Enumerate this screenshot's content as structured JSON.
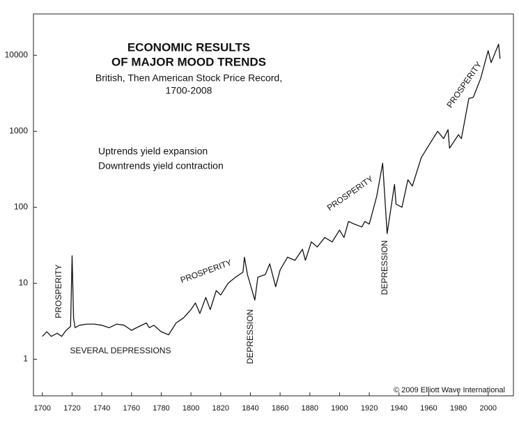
{
  "chart_data": {
    "type": "line",
    "title": [
      "ECONOMIC RESULTS",
      "OF MAJOR MOOD TRENDS"
    ],
    "subtitle": [
      "British, Then American Stock Price Record,",
      "1700-2008"
    ],
    "notes": [
      "Uptrends yield expansion",
      "Downtrends yield contraction"
    ],
    "annotations": [
      "PROSPERITY",
      "SEVERAL DEPRESSIONS",
      "PROSPERITY",
      "DEPRESSION",
      "PROSPERITY",
      "DEPRESSION",
      "PROSPERITY"
    ],
    "credit": "© 2009 Elliott Wave International",
    "x": [
      1700,
      1703,
      1706,
      1710,
      1713,
      1716,
      1719,
      1720,
      1721,
      1722,
      1725,
      1730,
      1735,
      1740,
      1745,
      1750,
      1755,
      1760,
      1765,
      1770,
      1772,
      1775,
      1780,
      1785,
      1790,
      1795,
      1800,
      1803,
      1806,
      1810,
      1813,
      1817,
      1820,
      1825,
      1830,
      1835,
      1836,
      1838,
      1842,
      1843,
      1845,
      1850,
      1853,
      1857,
      1860,
      1865,
      1870,
      1875,
      1877,
      1881,
      1885,
      1890,
      1895,
      1900,
      1903,
      1906,
      1910,
      1915,
      1917,
      1920,
      1925,
      1929,
      1932,
      1937,
      1938,
      1942,
      1946,
      1949,
      1955,
      1960,
      1966,
      1970,
      1973,
      1974,
      1980,
      1982,
      1987,
      1990,
      1995,
      2000,
      2002,
      2007,
      2008
    ],
    "values": [
      2.0,
      2.3,
      2.0,
      2.2,
      2.0,
      2.4,
      2.7,
      23,
      3.5,
      2.6,
      2.8,
      2.9,
      2.9,
      2.8,
      2.6,
      2.9,
      2.8,
      2.4,
      2.7,
      3.0,
      2.6,
      2.8,
      2.3,
      2.1,
      3.0,
      3.5,
      4.5,
      5.5,
      4.0,
      6.5,
      4.5,
      8,
      7,
      10,
      12,
      14,
      22,
      13,
      7,
      6,
      12,
      13,
      18,
      9,
      15,
      22,
      20,
      28,
      20,
      35,
      30,
      40,
      35,
      50,
      40,
      65,
      60,
      55,
      65,
      60,
      140,
      380,
      45,
      200,
      110,
      100,
      230,
      190,
      450,
      650,
      1000,
      800,
      1050,
      600,
      900,
      800,
      2700,
      2800,
      5000,
      11500,
      8000,
      14000,
      9000
    ],
    "color": "#111111",
    "log_scale": true,
    "grid": false,
    "xlim": [
      1694,
      2017
    ],
    "xticks": [
      1700,
      1720,
      1740,
      1760,
      1780,
      1800,
      1820,
      1840,
      1860,
      1880,
      1900,
      1920,
      1940,
      1960,
      1980,
      2000
    ],
    "ylim": [
      0.33,
      35000
    ],
    "yticks": [
      1,
      10,
      100,
      1000,
      10000
    ]
  }
}
